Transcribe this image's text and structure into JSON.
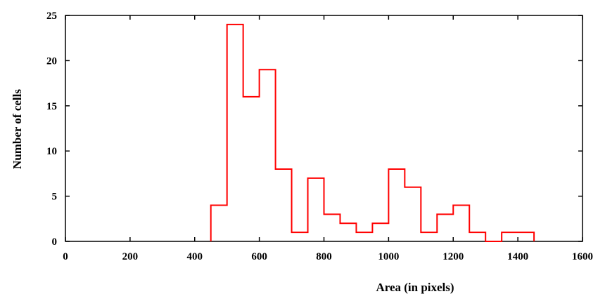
{
  "chart_data": {
    "type": "histogram",
    "title": "",
    "xlabel": "Area (in pixels)",
    "ylabel": "Number of cells",
    "xlim": [
      0,
      1600
    ],
    "ylim": [
      0,
      25
    ],
    "xticks": [
      0,
      200,
      400,
      600,
      800,
      1000,
      1200,
      1400,
      1600
    ],
    "yticks": [
      0,
      5,
      10,
      15,
      20,
      25
    ],
    "grid": false,
    "line_color": "#ff0000",
    "bin_width": 50,
    "bins": [
      {
        "x0": 450,
        "x1": 500,
        "count": 4
      },
      {
        "x0": 500,
        "x1": 550,
        "count": 24
      },
      {
        "x0": 550,
        "x1": 600,
        "count": 16
      },
      {
        "x0": 600,
        "x1": 650,
        "count": 19
      },
      {
        "x0": 650,
        "x1": 700,
        "count": 8
      },
      {
        "x0": 700,
        "x1": 750,
        "count": 1
      },
      {
        "x0": 750,
        "x1": 800,
        "count": 7
      },
      {
        "x0": 800,
        "x1": 850,
        "count": 3
      },
      {
        "x0": 850,
        "x1": 900,
        "count": 2
      },
      {
        "x0": 900,
        "x1": 950,
        "count": 1
      },
      {
        "x0": 950,
        "x1": 1000,
        "count": 2
      },
      {
        "x0": 1000,
        "x1": 1050,
        "count": 8
      },
      {
        "x0": 1050,
        "x1": 1100,
        "count": 6
      },
      {
        "x0": 1100,
        "x1": 1150,
        "count": 1
      },
      {
        "x0": 1150,
        "x1": 1200,
        "count": 3
      },
      {
        "x0": 1200,
        "x1": 1250,
        "count": 4
      },
      {
        "x0": 1250,
        "x1": 1300,
        "count": 1
      },
      {
        "x0": 1300,
        "x1": 1350,
        "count": 0
      },
      {
        "x0": 1350,
        "x1": 1400,
        "count": 1
      },
      {
        "x0": 1400,
        "x1": 1450,
        "count": 1
      }
    ]
  }
}
